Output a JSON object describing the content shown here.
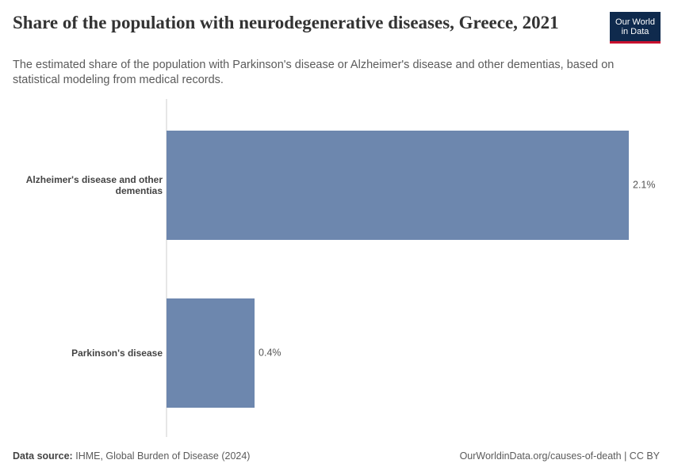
{
  "chart_data": {
    "type": "hbar",
    "title": "Share of the population with neurodegenerative diseases, Greece, 2021",
    "subtitle": "The estimated share of the population with Parkinson's disease or Alzheimer's disease and other dementias, based on statistical modeling from medical records.",
    "categories": [
      "Alzheimer's disease and other dementias",
      "Parkinson's disease"
    ],
    "values": [
      2.1,
      0.4
    ],
    "value_labels": [
      "2.1%",
      "0.4%"
    ],
    "color": "#6d87ae",
    "source_label": "Data source:",
    "source": "IHME, Global Burden of Disease (2024)",
    "credit": "OurWorldinData.org/causes-of-death | CC BY",
    "logo": [
      "Our World",
      "in Data"
    ]
  }
}
